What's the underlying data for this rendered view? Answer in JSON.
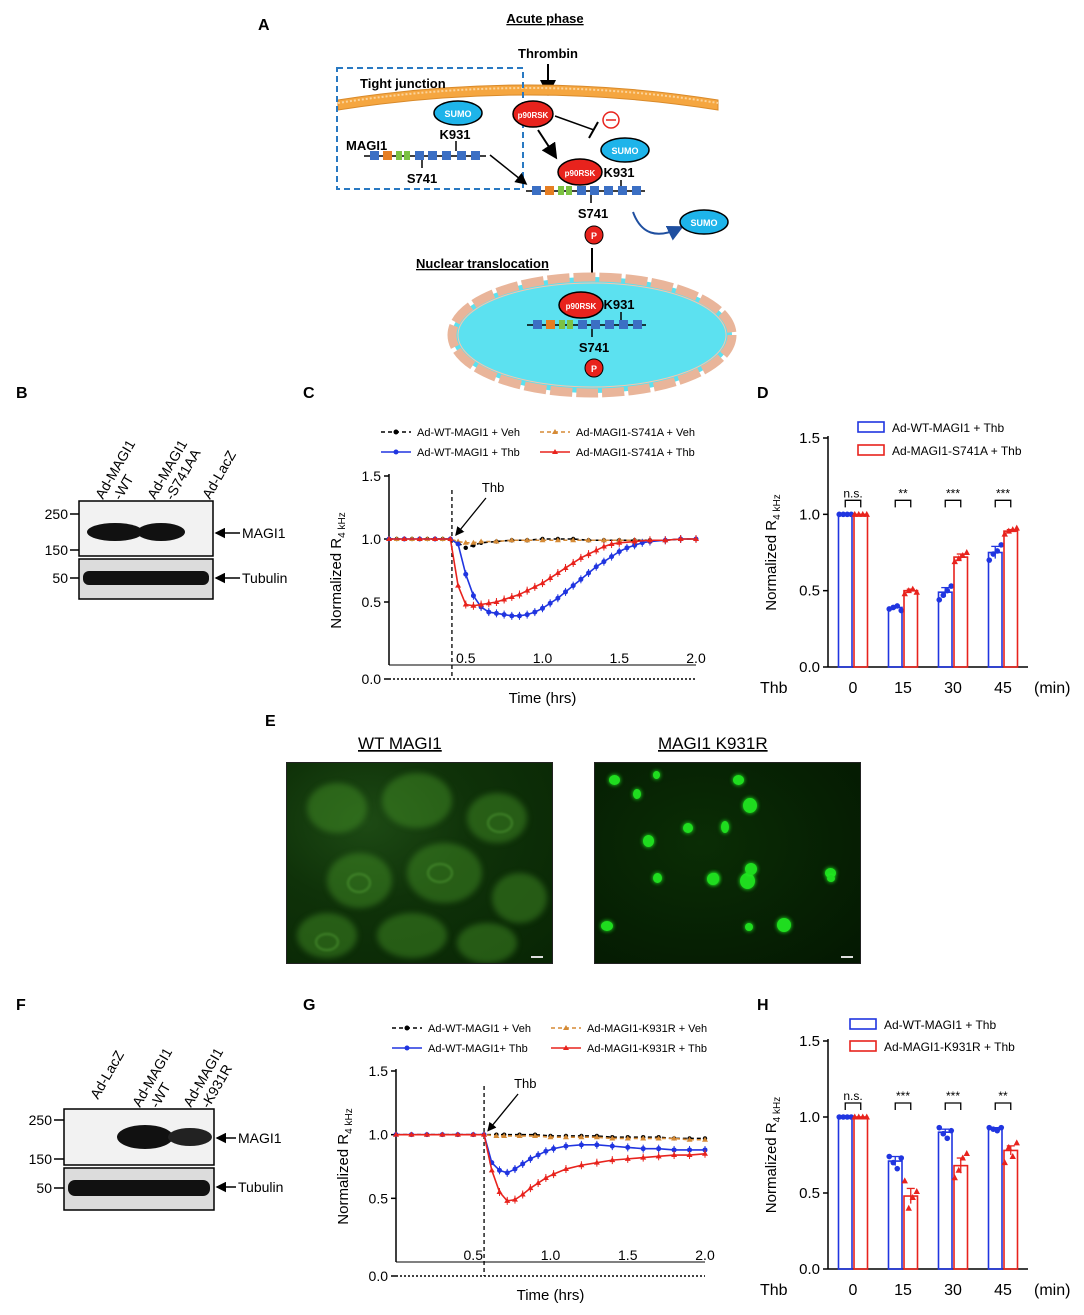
{
  "panels": {
    "A": "A",
    "B": "B",
    "C": "C",
    "D": "D",
    "E": "E",
    "F": "F",
    "G": "G",
    "H": "H"
  },
  "panelA": {
    "title": "Acute phase",
    "thrombin": "Thrombin",
    "tight_junction": "Tight junction",
    "sumo": "SUMO",
    "magi1": "MAGI1",
    "k931": "K931",
    "s741": "S741",
    "p90rsk": "p90RSK",
    "p": "P",
    "inhibit": "⊖",
    "nuclear": "Nuclear translocation",
    "colors": {
      "membrane": "#f5a640",
      "nucleus": "#5ce1f0",
      "sumo": "#1eb4ea",
      "p90rsk": "#e8231d",
      "box": "#2979c2"
    }
  },
  "panelB": {
    "lanes": [
      "Ad-MAGI1\n-WT",
      "Ad-MAGI1\n-S741AA",
      "Ad-LacZ"
    ],
    "mw": [
      "250",
      "150",
      "50"
    ],
    "bands": [
      "MAGI1",
      "Tubulin"
    ]
  },
  "panelF": {
    "lanes": [
      "Ad-LacZ",
      "Ad-MAGI1\n-WT",
      "Ad-MAGI1\n-K931R"
    ],
    "mw": [
      "250",
      "150",
      "50"
    ],
    "bands": [
      "MAGI1",
      "Tubulin"
    ]
  },
  "panelE": {
    "left_title": "WT MAGI1",
    "right_title": "MAGI1 K931R"
  },
  "chart_data": [
    {
      "panel": "C",
      "type": "line",
      "xlabel": "Time (hrs)",
      "ylabel": "Normalized R4 kHz",
      "xlim": [
        0,
        2.0
      ],
      "ylim": [
        0,
        1.5
      ],
      "xticks": [
        "0.5",
        "1.0",
        "1.5",
        "2.0"
      ],
      "yticks": [
        "0.0",
        "0.5",
        "1.0",
        "1.5"
      ],
      "annotation": "Thb",
      "annotation_x": 0.41,
      "series": [
        {
          "name": "Ad-WT-MAGI1 + Veh",
          "color": "#000000",
          "x": [
            0.0,
            0.05,
            0.1,
            0.15,
            0.2,
            0.25,
            0.3,
            0.35,
            0.4,
            0.45,
            0.5,
            0.55,
            0.6,
            0.7,
            0.8,
            0.9,
            1.0,
            1.1,
            1.2,
            1.3,
            1.4,
            1.5,
            1.6,
            1.7,
            1.8,
            1.9,
            2.0
          ],
          "y": [
            1.0,
            1.0,
            1.0,
            1.0,
            1.0,
            1.0,
            1.0,
            1.0,
            1.0,
            0.97,
            0.93,
            0.95,
            0.97,
            0.98,
            0.99,
            0.99,
            1.0,
            1.0,
            1.0,
            0.99,
            0.99,
            0.99,
            0.99,
            0.99,
            0.99,
            1.0,
            1.0
          ]
        },
        {
          "name": "Ad-MAGI1-S741A + Veh",
          "color": "#d58a35",
          "x": [
            0.0,
            0.05,
            0.1,
            0.15,
            0.2,
            0.25,
            0.3,
            0.35,
            0.4,
            0.45,
            0.5,
            0.55,
            0.6,
            0.7,
            0.8,
            0.9,
            1.0,
            1.1,
            1.2,
            1.3,
            1.4,
            1.5,
            1.6,
            1.7,
            1.8,
            1.9,
            2.0
          ],
          "y": [
            1.0,
            1.0,
            1.0,
            1.0,
            1.0,
            1.0,
            1.0,
            1.0,
            1.0,
            0.98,
            0.97,
            0.97,
            0.98,
            0.98,
            0.99,
            0.99,
            0.99,
            0.99,
            0.99,
            0.99,
            0.99,
            0.99,
            0.99,
            0.99,
            0.99,
            1.0,
            1.0
          ]
        },
        {
          "name": "Ad-WT-MAGI1 + Thb",
          "color": "#2035e0",
          "x": [
            0.0,
            0.1,
            0.2,
            0.3,
            0.4,
            0.45,
            0.5,
            0.55,
            0.6,
            0.65,
            0.7,
            0.75,
            0.8,
            0.85,
            0.9,
            0.95,
            1.0,
            1.05,
            1.1,
            1.15,
            1.2,
            1.25,
            1.3,
            1.35,
            1.4,
            1.45,
            1.5,
            1.55,
            1.6,
            1.65,
            1.7,
            1.8,
            1.9,
            2.0
          ],
          "y": [
            1.0,
            1.0,
            1.0,
            1.0,
            1.0,
            0.96,
            0.72,
            0.55,
            0.46,
            0.42,
            0.41,
            0.4,
            0.39,
            0.39,
            0.4,
            0.42,
            0.45,
            0.49,
            0.53,
            0.58,
            0.63,
            0.68,
            0.73,
            0.78,
            0.82,
            0.86,
            0.9,
            0.93,
            0.95,
            0.97,
            0.98,
            0.99,
            1.0,
            1.0
          ]
        },
        {
          "name": "Ad-MAGI1-S741A + Thb",
          "color": "#e8231d",
          "x": [
            0.0,
            0.1,
            0.2,
            0.3,
            0.4,
            0.45,
            0.5,
            0.55,
            0.6,
            0.65,
            0.7,
            0.75,
            0.8,
            0.85,
            0.9,
            0.95,
            1.0,
            1.05,
            1.1,
            1.15,
            1.2,
            1.25,
            1.3,
            1.35,
            1.4,
            1.45,
            1.5,
            1.6,
            1.7,
            1.8,
            1.9,
            2.0
          ],
          "y": [
            1.0,
            1.0,
            1.0,
            1.0,
            1.0,
            0.63,
            0.48,
            0.47,
            0.48,
            0.49,
            0.5,
            0.52,
            0.54,
            0.56,
            0.59,
            0.62,
            0.65,
            0.69,
            0.73,
            0.77,
            0.81,
            0.85,
            0.88,
            0.91,
            0.94,
            0.96,
            0.97,
            0.98,
            0.99,
            0.99,
            1.0,
            1.0
          ]
        }
      ]
    },
    {
      "panel": "D",
      "type": "bar",
      "xlabel": "Thb",
      "xunit": "(min)",
      "ylabel": "Normalized R4 kHz",
      "ylim": [
        0,
        1.5
      ],
      "yticks": [
        "0.0",
        "0.5",
        "1.0",
        "1.5"
      ],
      "categories": [
        "0",
        "15",
        "30",
        "45"
      ],
      "significance": [
        "n.s.",
        "**",
        "***",
        "***"
      ],
      "series": [
        {
          "name": "Ad-WT-MAGI1 + Thb",
          "color": "#2035e0",
          "values": [
            1.0,
            0.39,
            0.49,
            0.75
          ],
          "sem": [
            0.0,
            0.01,
            0.03,
            0.04
          ],
          "points": [
            [
              1.0,
              1.0,
              1.0,
              1.0
            ],
            [
              0.38,
              0.39,
              0.4,
              0.37
            ],
            [
              0.44,
              0.47,
              0.5,
              0.53
            ],
            [
              0.7,
              0.74,
              0.76,
              0.8
            ]
          ]
        },
        {
          "name": "Ad-MAGI1-S741A + Thb",
          "color": "#e8231d",
          "values": [
            1.0,
            0.5,
            0.72,
            0.89
          ],
          "sem": [
            0.0,
            0.01,
            0.02,
            0.01
          ],
          "points": [
            [
              1.0,
              1.0,
              1.0,
              1.0
            ],
            [
              0.48,
              0.5,
              0.51,
              0.49
            ],
            [
              0.69,
              0.71,
              0.73,
              0.75
            ],
            [
              0.87,
              0.89,
              0.9,
              0.91
            ]
          ]
        }
      ]
    },
    {
      "panel": "G",
      "type": "line",
      "xlabel": "Time (hrs)",
      "ylabel": "Normalized R4 kHz",
      "xlim": [
        0,
        2.0
      ],
      "ylim": [
        0,
        1.5
      ],
      "xticks": [
        "0.5",
        "1.0",
        "1.5",
        "2.0"
      ],
      "yticks": [
        "0.0",
        "0.5",
        "1.0",
        "1.5"
      ],
      "annotation": "Thb",
      "annotation_x": 0.57,
      "series": [
        {
          "name": "Ad-WT-MAGI1 + Veh",
          "color": "#000000",
          "x": [
            0.0,
            0.1,
            0.2,
            0.3,
            0.4,
            0.5,
            0.57,
            0.65,
            0.7,
            0.8,
            0.9,
            1.0,
            1.1,
            1.2,
            1.3,
            1.4,
            1.5,
            1.6,
            1.7,
            1.8,
            1.9,
            2.0
          ],
          "y": [
            1.0,
            1.0,
            1.0,
            1.0,
            1.0,
            1.0,
            1.0,
            1.0,
            1.0,
            1.0,
            1.0,
            0.99,
            0.99,
            0.99,
            0.99,
            0.98,
            0.98,
            0.98,
            0.98,
            0.97,
            0.97,
            0.97
          ]
        },
        {
          "name": "Ad-MAGI1-K931R + Veh",
          "color": "#d58a35",
          "x": [
            0.0,
            0.1,
            0.2,
            0.3,
            0.4,
            0.5,
            0.57,
            0.65,
            0.7,
            0.8,
            0.9,
            1.0,
            1.1,
            1.2,
            1.3,
            1.4,
            1.5,
            1.6,
            1.7,
            1.8,
            1.9,
            2.0
          ],
          "y": [
            1.0,
            1.0,
            1.0,
            1.0,
            1.0,
            1.0,
            1.0,
            0.99,
            0.99,
            0.99,
            0.99,
            0.98,
            0.98,
            0.98,
            0.98,
            0.97,
            0.97,
            0.97,
            0.97,
            0.97,
            0.96,
            0.96
          ]
        },
        {
          "name": "Ad-WT-MAGI1+ Thb",
          "color": "#2035e0",
          "x": [
            0.0,
            0.1,
            0.2,
            0.3,
            0.4,
            0.5,
            0.57,
            0.62,
            0.67,
            0.72,
            0.77,
            0.82,
            0.87,
            0.92,
            0.97,
            1.02,
            1.1,
            1.2,
            1.3,
            1.4,
            1.5,
            1.6,
            1.7,
            1.8,
            1.9,
            2.0
          ],
          "y": [
            1.0,
            1.0,
            1.0,
            1.0,
            1.0,
            1.0,
            1.0,
            0.78,
            0.72,
            0.7,
            0.73,
            0.77,
            0.81,
            0.84,
            0.87,
            0.89,
            0.91,
            0.92,
            0.92,
            0.91,
            0.9,
            0.89,
            0.89,
            0.88,
            0.88,
            0.88
          ]
        },
        {
          "name": "Ad-MAGI1-K931R + Thb",
          "color": "#e8231d",
          "x": [
            0.0,
            0.1,
            0.2,
            0.3,
            0.4,
            0.5,
            0.57,
            0.62,
            0.67,
            0.72,
            0.77,
            0.82,
            0.87,
            0.92,
            0.97,
            1.02,
            1.1,
            1.2,
            1.3,
            1.4,
            1.5,
            1.6,
            1.7,
            1.8,
            1.9,
            2.0
          ],
          "y": [
            1.0,
            1.0,
            1.0,
            1.0,
            1.0,
            1.0,
            1.0,
            0.72,
            0.55,
            0.48,
            0.49,
            0.53,
            0.58,
            0.62,
            0.66,
            0.69,
            0.73,
            0.76,
            0.78,
            0.8,
            0.81,
            0.82,
            0.83,
            0.84,
            0.84,
            0.85
          ]
        }
      ]
    },
    {
      "panel": "H",
      "type": "bar",
      "xlabel": "Thb",
      "xunit": "(min)",
      "ylabel": "Normalized R4 kHz",
      "ylim": [
        0,
        1.5
      ],
      "yticks": [
        "0.0",
        "0.5",
        "1.0",
        "1.5"
      ],
      "categories": [
        "0",
        "15",
        "30",
        "45"
      ],
      "significance": [
        "n.s.",
        "***",
        "***",
        "**"
      ],
      "series": [
        {
          "name": "Ad-WT-MAGI1 + Thb",
          "color": "#2035e0",
          "values": [
            1.0,
            0.71,
            0.9,
            0.92
          ],
          "sem": [
            0.0,
            0.03,
            0.02,
            0.01
          ],
          "points": [
            [
              1.0,
              1.0,
              1.0,
              1.0
            ],
            [
              0.74,
              0.7,
              0.66,
              0.73
            ],
            [
              0.93,
              0.89,
              0.86,
              0.91
            ],
            [
              0.93,
              0.92,
              0.91,
              0.93
            ]
          ]
        },
        {
          "name": "Ad-MAGI1-K931R + Thb",
          "color": "#e8231d",
          "values": [
            1.0,
            0.48,
            0.68,
            0.78
          ],
          "sem": [
            0.0,
            0.05,
            0.05,
            0.03
          ],
          "points": [
            [
              1.0,
              1.0,
              1.0,
              1.0
            ],
            [
              0.58,
              0.4,
              0.47,
              0.51
            ],
            [
              0.6,
              0.65,
              0.73,
              0.76
            ],
            [
              0.7,
              0.8,
              0.74,
              0.83
            ]
          ]
        }
      ]
    }
  ]
}
